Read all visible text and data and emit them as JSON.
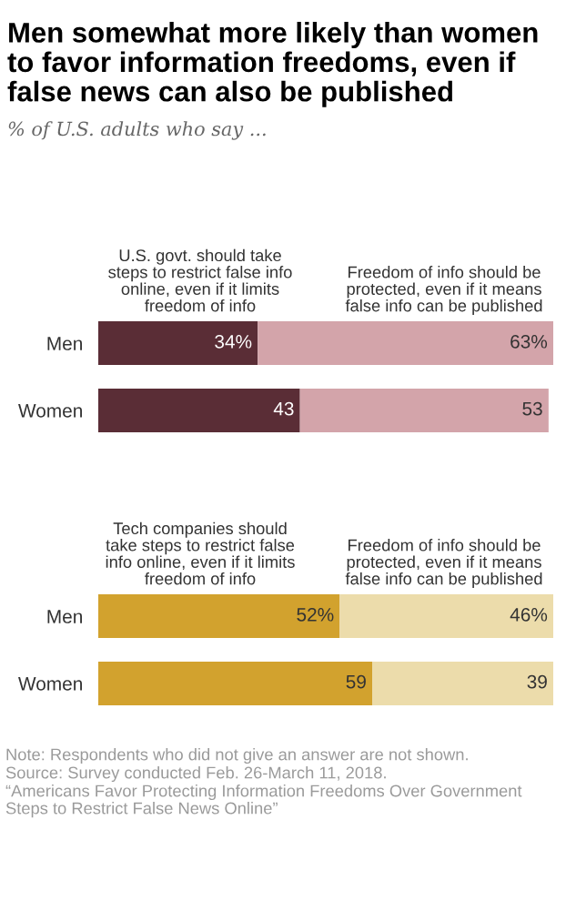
{
  "chart_data": [
    {
      "type": "bar",
      "orientation": "horizontal",
      "stacked": true,
      "title": "Men somewhat more likely than women to favor information freedoms, even if false news can also be published",
      "subtitle": "% of U.S. adults who say ...",
      "categories": [
        "Men",
        "Women"
      ],
      "series": [
        {
          "name": "U.S. govt. should take steps to restrict false info online, even if it limits freedom of info",
          "color": "#5a2d36",
          "values": [
            34,
            43
          ],
          "value_labels": [
            "34%",
            "43"
          ]
        },
        {
          "name": "Freedom of info should be protected, even if it means false info can be published",
          "color": "#d3a4aa",
          "values": [
            63,
            53
          ],
          "value_labels": [
            "63%",
            "53"
          ]
        }
      ]
    },
    {
      "type": "bar",
      "orientation": "horizontal",
      "stacked": true,
      "categories": [
        "Men",
        "Women"
      ],
      "series": [
        {
          "name": "Tech companies should take steps to restrict false info online, even if it limits freedom of info",
          "color": "#d2a22e",
          "values": [
            52,
            59
          ],
          "value_labels": [
            "52%",
            "59"
          ]
        },
        {
          "name": "Freedom of info should be protected, even if it means false info can be published",
          "color": "#ecdcab",
          "values": [
            46,
            39
          ],
          "value_labels": [
            "46%",
            "39"
          ]
        }
      ],
      "annotations": [
        "Note: Respondents who did not give an answer are not shown.",
        "Source: Survey conducted Feb. 26-March 11, 2018.",
        "“Americans Favor Protecting Information Freedoms Over Government Steps to Restrict False News Online”"
      ]
    }
  ]
}
